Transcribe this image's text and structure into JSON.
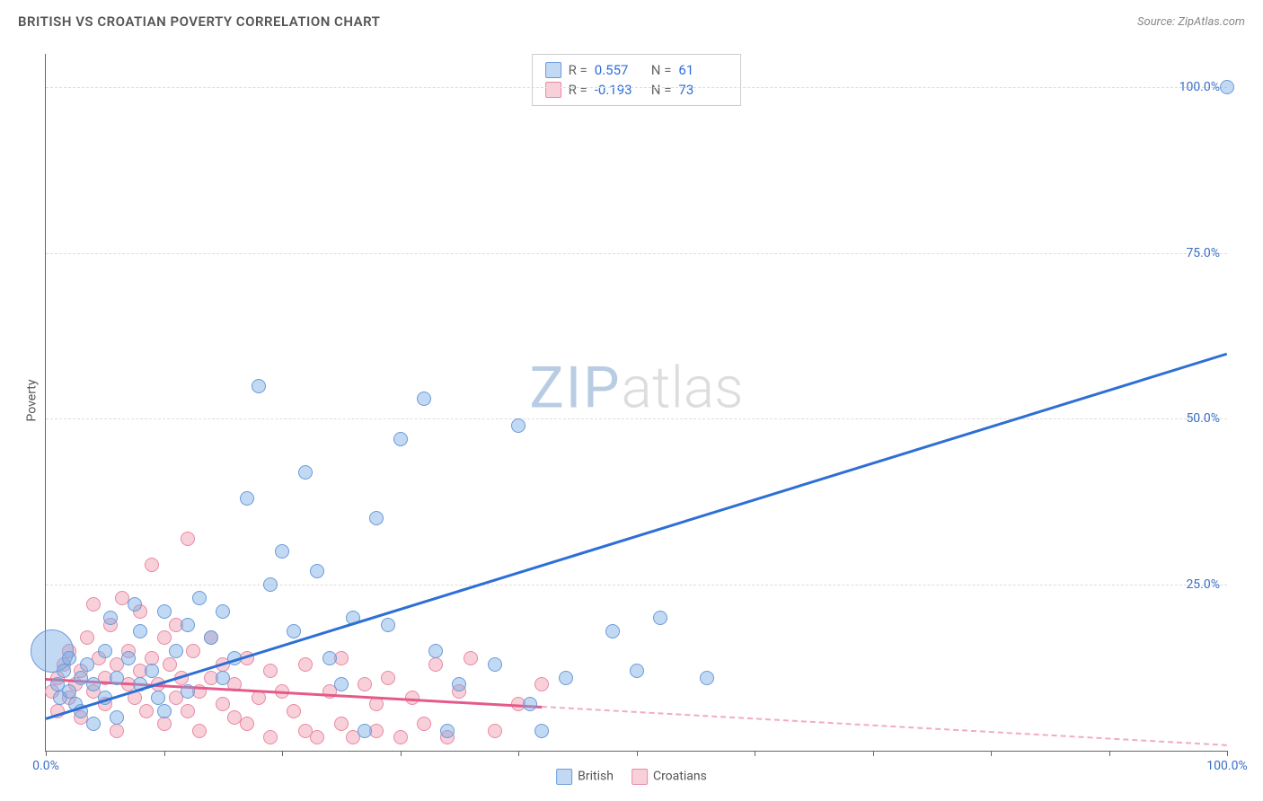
{
  "header": {
    "title": "BRITISH VS CROATIAN POVERTY CORRELATION CHART",
    "source": "Source: ZipAtlas.com"
  },
  "chart": {
    "type": "scatter",
    "ylabel": "Poverty",
    "xlim": [
      0,
      100
    ],
    "ylim": [
      0,
      105
    ],
    "y_ticks": [
      {
        "value": 25,
        "label": "25.0%"
      },
      {
        "value": 50,
        "label": "50.0%"
      },
      {
        "value": 75,
        "label": "75.0%"
      },
      {
        "value": 100,
        "label": "100.0%"
      }
    ],
    "x_ticks": [
      0,
      10,
      20,
      30,
      40,
      50,
      60,
      70,
      80,
      90,
      100
    ],
    "x_tick_labels": [
      {
        "value": 0,
        "label": "0.0%"
      },
      {
        "value": 100,
        "label": "100.0%"
      }
    ],
    "axis_label_color": "#3b6fc9",
    "grid_color": "#dddddd",
    "background_color": "#ffffff",
    "watermark": {
      "zip": "ZIP",
      "atlas": "atlas"
    },
    "series": {
      "british": {
        "label": "British",
        "color_fill": "rgba(120,170,230,0.45)",
        "color_stroke": "#6a9bd8",
        "trend_color": "#2e6fd4",
        "trend_start": {
          "x": 0,
          "y": 5
        },
        "trend_end": {
          "x": 100,
          "y": 60
        },
        "trend_solid_until_x": 100,
        "R": "0.557",
        "N": "61",
        "marker_radius": 8,
        "points": [
          {
            "x": 0.5,
            "y": 15,
            "r": 24
          },
          {
            "x": 1,
            "y": 10
          },
          {
            "x": 1.2,
            "y": 8
          },
          {
            "x": 1.5,
            "y": 12
          },
          {
            "x": 2,
            "y": 9
          },
          {
            "x": 2,
            "y": 14
          },
          {
            "x": 2.5,
            "y": 7
          },
          {
            "x": 3,
            "y": 11
          },
          {
            "x": 3,
            "y": 6
          },
          {
            "x": 3.5,
            "y": 13
          },
          {
            "x": 4,
            "y": 10
          },
          {
            "x": 4,
            "y": 4
          },
          {
            "x": 5,
            "y": 15
          },
          {
            "x": 5,
            "y": 8
          },
          {
            "x": 5.5,
            "y": 20
          },
          {
            "x": 6,
            "y": 11
          },
          {
            "x": 6,
            "y": 5
          },
          {
            "x": 7,
            "y": 14
          },
          {
            "x": 7.5,
            "y": 22
          },
          {
            "x": 8,
            "y": 10
          },
          {
            "x": 8,
            "y": 18
          },
          {
            "x": 9,
            "y": 12
          },
          {
            "x": 9.5,
            "y": 8
          },
          {
            "x": 10,
            "y": 21
          },
          {
            "x": 10,
            "y": 6
          },
          {
            "x": 11,
            "y": 15
          },
          {
            "x": 12,
            "y": 19
          },
          {
            "x": 12,
            "y": 9
          },
          {
            "x": 13,
            "y": 23
          },
          {
            "x": 14,
            "y": 17
          },
          {
            "x": 15,
            "y": 21
          },
          {
            "x": 15,
            "y": 11
          },
          {
            "x": 16,
            "y": 14
          },
          {
            "x": 17,
            "y": 38
          },
          {
            "x": 18,
            "y": 55
          },
          {
            "x": 19,
            "y": 25
          },
          {
            "x": 20,
            "y": 30
          },
          {
            "x": 21,
            "y": 18
          },
          {
            "x": 22,
            "y": 42
          },
          {
            "x": 23,
            "y": 27
          },
          {
            "x": 24,
            "y": 14
          },
          {
            "x": 25,
            "y": 10
          },
          {
            "x": 26,
            "y": 20
          },
          {
            "x": 27,
            "y": 3
          },
          {
            "x": 28,
            "y": 35
          },
          {
            "x": 29,
            "y": 19
          },
          {
            "x": 30,
            "y": 47
          },
          {
            "x": 32,
            "y": 53
          },
          {
            "x": 33,
            "y": 15
          },
          {
            "x": 34,
            "y": 3
          },
          {
            "x": 35,
            "y": 10
          },
          {
            "x": 38,
            "y": 13
          },
          {
            "x": 40,
            "y": 49
          },
          {
            "x": 41,
            "y": 7
          },
          {
            "x": 42,
            "y": 3
          },
          {
            "x": 44,
            "y": 11
          },
          {
            "x": 48,
            "y": 18
          },
          {
            "x": 50,
            "y": 12
          },
          {
            "x": 52,
            "y": 20
          },
          {
            "x": 56,
            "y": 11
          },
          {
            "x": 100,
            "y": 100
          }
        ]
      },
      "croatians": {
        "label": "Croatians",
        "color_fill": "rgba(240,150,170,0.45)",
        "color_stroke": "#e88aa3",
        "trend_color": "#e55a8a",
        "trend_start": {
          "x": 0,
          "y": 11
        },
        "trend_end": {
          "x": 100,
          "y": 1
        },
        "trend_solid_until_x": 42,
        "R": "-0.193",
        "N": "73",
        "marker_radius": 8,
        "points": [
          {
            "x": 0.5,
            "y": 9
          },
          {
            "x": 1,
            "y": 11
          },
          {
            "x": 1,
            "y": 6
          },
          {
            "x": 1.5,
            "y": 13
          },
          {
            "x": 2,
            "y": 8
          },
          {
            "x": 2,
            "y": 15
          },
          {
            "x": 2.5,
            "y": 10
          },
          {
            "x": 3,
            "y": 12
          },
          {
            "x": 3,
            "y": 5
          },
          {
            "x": 3.5,
            "y": 17
          },
          {
            "x": 4,
            "y": 9
          },
          {
            "x": 4,
            "y": 22
          },
          {
            "x": 4.5,
            "y": 14
          },
          {
            "x": 5,
            "y": 7
          },
          {
            "x": 5,
            "y": 11
          },
          {
            "x": 5.5,
            "y": 19
          },
          {
            "x": 6,
            "y": 13
          },
          {
            "x": 6,
            "y": 3
          },
          {
            "x": 6.5,
            "y": 23
          },
          {
            "x": 7,
            "y": 10
          },
          {
            "x": 7,
            "y": 15
          },
          {
            "x": 7.5,
            "y": 8
          },
          {
            "x": 8,
            "y": 12
          },
          {
            "x": 8,
            "y": 21
          },
          {
            "x": 8.5,
            "y": 6
          },
          {
            "x": 9,
            "y": 28
          },
          {
            "x": 9,
            "y": 14
          },
          {
            "x": 9.5,
            "y": 10
          },
          {
            "x": 10,
            "y": 17
          },
          {
            "x": 10,
            "y": 4
          },
          {
            "x": 10.5,
            "y": 13
          },
          {
            "x": 11,
            "y": 8
          },
          {
            "x": 11,
            "y": 19
          },
          {
            "x": 11.5,
            "y": 11
          },
          {
            "x": 12,
            "y": 32
          },
          {
            "x": 12,
            "y": 6
          },
          {
            "x": 12.5,
            "y": 15
          },
          {
            "x": 13,
            "y": 9
          },
          {
            "x": 13,
            "y": 3
          },
          {
            "x": 14,
            "y": 17
          },
          {
            "x": 14,
            "y": 11
          },
          {
            "x": 15,
            "y": 7
          },
          {
            "x": 15,
            "y": 13
          },
          {
            "x": 16,
            "y": 5
          },
          {
            "x": 16,
            "y": 10
          },
          {
            "x": 17,
            "y": 14
          },
          {
            "x": 17,
            "y": 4
          },
          {
            "x": 18,
            "y": 8
          },
          {
            "x": 19,
            "y": 12
          },
          {
            "x": 19,
            "y": 2
          },
          {
            "x": 20,
            "y": 9
          },
          {
            "x": 21,
            "y": 6
          },
          {
            "x": 22,
            "y": 13
          },
          {
            "x": 22,
            "y": 3
          },
          {
            "x": 23,
            "y": 2
          },
          {
            "x": 24,
            "y": 9
          },
          {
            "x": 25,
            "y": 14
          },
          {
            "x": 25,
            "y": 4
          },
          {
            "x": 26,
            "y": 2
          },
          {
            "x": 27,
            "y": 10
          },
          {
            "x": 28,
            "y": 7
          },
          {
            "x": 28,
            "y": 3
          },
          {
            "x": 29,
            "y": 11
          },
          {
            "x": 30,
            "y": 2
          },
          {
            "x": 31,
            "y": 8
          },
          {
            "x": 32,
            "y": 4
          },
          {
            "x": 33,
            "y": 13
          },
          {
            "x": 34,
            "y": 2
          },
          {
            "x": 35,
            "y": 9
          },
          {
            "x": 36,
            "y": 14
          },
          {
            "x": 38,
            "y": 3
          },
          {
            "x": 40,
            "y": 7
          },
          {
            "x": 42,
            "y": 10
          }
        ]
      }
    }
  },
  "legend": {
    "items": [
      {
        "key": "british",
        "label": "British"
      },
      {
        "key": "croatians",
        "label": "Croatians"
      }
    ]
  }
}
